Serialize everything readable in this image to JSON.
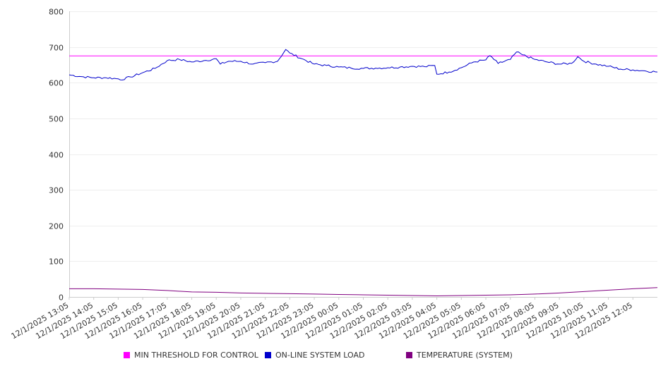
{
  "chart_data": {
    "type": "line",
    "ylim": [
      0,
      800
    ],
    "y_ticks": [
      0,
      100,
      200,
      300,
      400,
      500,
      600,
      700,
      800
    ],
    "x_tick_labels": [
      "12/1/2025 13:05",
      "12/1/2025 14:05",
      "12/1/2025 15:05",
      "12/1/2025 16:05",
      "12/1/2025 17:05",
      "12/1/2025 18:05",
      "12/1/2025 19:05",
      "12/1/2025 20:05",
      "12/1/2025 21:05",
      "12/1/2025 22:05",
      "12/1/2025 23:05",
      "12/2/2025 00:05",
      "12/2/2025 01:05",
      "12/2/2025 02:05",
      "12/2/2025 03:05",
      "12/2/2025 04:05",
      "12/2/2025 05:05",
      "12/2/2025 06:05",
      "12/2/2025 07:05",
      "12/2/2025 08:05",
      "12/2/2025 09:05",
      "12/2/2025 10:05",
      "12/2/2025 11:05",
      "12/2/2025 12:05"
    ],
    "x_range": [
      "12/1/2025 13:05",
      "12/2/2025 13:05"
    ],
    "grid": true,
    "legend_position": "bottom",
    "series": [
      {
        "name": "MIN THRESHOLD FOR CONTROL",
        "color": "#ff00ff",
        "x": [
          "12/1/2025 13:05",
          "12/2/2025 13:05"
        ],
        "values": [
          675,
          675
        ]
      },
      {
        "name": "ON-LINE SYSTEM LOAD",
        "color": "#0000cc",
        "x": [
          "12/1/2025 13:05",
          "12/1/2025 13:35",
          "12/1/2025 14:05",
          "12/1/2025 14:35",
          "12/1/2025 15:05",
          "12/1/2025 15:10",
          "12/1/2025 15:35",
          "12/1/2025 16:05",
          "12/1/2025 16:35",
          "12/1/2025 17:05",
          "12/1/2025 17:35",
          "12/1/2025 18:05",
          "12/1/2025 18:35",
          "12/1/2025 19:05",
          "12/1/2025 19:15",
          "12/1/2025 19:35",
          "12/1/2025 20:05",
          "12/1/2025 20:35",
          "12/1/2025 21:05",
          "12/1/2025 21:35",
          "12/1/2025 21:55",
          "12/1/2025 22:05",
          "12/1/2025 22:35",
          "12/1/2025 23:05",
          "12/1/2025 23:35",
          "12/2/2025 00:05",
          "12/2/2025 00:35",
          "12/2/2025 01:05",
          "12/2/2025 01:35",
          "12/2/2025 02:05",
          "12/2/2025 02:35",
          "12/2/2025 03:05",
          "12/2/2025 03:35",
          "12/2/2025 04:00",
          "12/2/2025 04:05",
          "12/2/2025 04:35",
          "12/2/2025 05:05",
          "12/2/2025 05:35",
          "12/2/2025 06:05",
          "12/2/2025 06:15",
          "12/2/2025 06:35",
          "12/2/2025 07:05",
          "12/2/2025 07:20",
          "12/2/2025 07:35",
          "12/2/2025 08:05",
          "12/2/2025 08:35",
          "12/2/2025 09:05",
          "12/2/2025 09:35",
          "12/2/2025 09:50",
          "12/2/2025 10:05",
          "12/2/2025 10:35",
          "12/2/2025 11:05",
          "12/2/2025 11:35",
          "12/2/2025 12:05",
          "12/2/2025 12:35",
          "12/2/2025 13:05"
        ],
        "values": [
          622,
          617,
          614,
          614,
          611,
          608,
          616,
          628,
          640,
          662,
          665,
          658,
          662,
          667,
          652,
          660,
          660,
          652,
          656,
          660,
          693,
          683,
          667,
          652,
          648,
          644,
          641,
          640,
          641,
          642,
          644,
          646,
          645,
          648,
          624,
          630,
          642,
          658,
          664,
          676,
          654,
          665,
          686,
          678,
          665,
          658,
          652,
          654,
          673,
          660,
          652,
          646,
          638,
          636,
          633,
          630
        ]
      },
      {
        "name": "TEMPERATURE (SYSTEM)",
        "color": "#800080",
        "x": [
          "12/1/2025 13:05",
          "12/1/2025 14:05",
          "12/1/2025 15:05",
          "12/1/2025 16:05",
          "12/1/2025 17:05",
          "12/1/2025 18:05",
          "12/1/2025 19:05",
          "12/1/2025 20:05",
          "12/1/2025 21:05",
          "12/1/2025 22:05",
          "12/1/2025 23:05",
          "12/2/2025 00:05",
          "12/2/2025 01:05",
          "12/2/2025 02:05",
          "12/2/2025 03:05",
          "12/2/2025 04:05",
          "12/2/2025 05:05",
          "12/2/2025 06:05",
          "12/2/2025 07:05",
          "12/2/2025 08:05",
          "12/2/2025 09:05",
          "12/2/2025 10:05",
          "12/2/2025 11:05",
          "12/2/2025 12:05",
          "12/2/2025 13:05"
        ],
        "values": [
          23,
          23,
          22,
          21,
          18,
          14,
          13,
          11,
          10,
          9,
          8,
          7,
          6,
          5,
          4,
          3,
          4,
          5,
          6,
          8,
          11,
          15,
          19,
          23,
          26
        ]
      }
    ]
  }
}
